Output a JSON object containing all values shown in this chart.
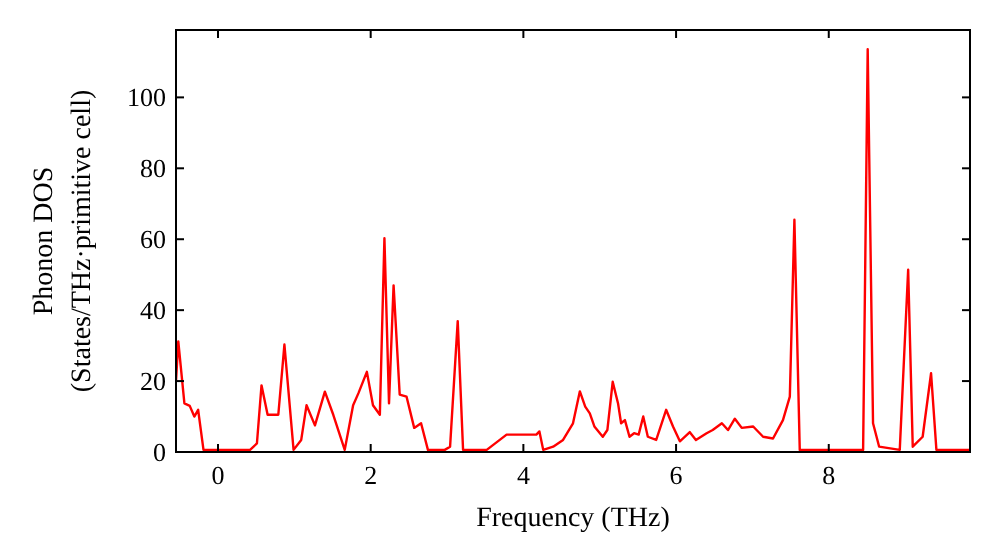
{
  "chart_data": {
    "type": "line",
    "xlabel": "Frequency (THz)",
    "ylabel": "Phonon DOS\n(States/THz·primitive cell)",
    "xlim": [
      -0.55,
      9.85
    ],
    "ylim": [
      0,
      119
    ],
    "xticks": [
      0,
      2,
      4,
      6,
      8
    ],
    "yticks": [
      0,
      20,
      40,
      60,
      80,
      100
    ],
    "grid": false,
    "marker": "none",
    "line_style": "solid",
    "series": [
      {
        "color": "#ff0000",
        "x": [
          -0.55,
          -0.52,
          -0.44,
          -0.37,
          -0.31,
          -0.26,
          -0.19,
          0.42,
          0.51,
          0.57,
          0.65,
          0.79,
          0.87,
          0.99,
          1.09,
          1.16,
          1.27,
          1.4,
          1.51,
          1.66,
          1.77,
          1.84,
          1.95,
          2.03,
          2.12,
          2.18,
          2.24,
          2.3,
          2.38,
          2.47,
          2.57,
          2.66,
          2.75,
          2.97,
          3.04,
          3.14,
          3.21,
          3.52,
          3.78,
          4.17,
          4.21,
          4.26,
          4.39,
          4.52,
          4.65,
          4.74,
          4.81,
          4.87,
          4.93,
          5.04,
          5.1,
          5.17,
          5.24,
          5.28,
          5.33,
          5.39,
          5.45,
          5.51,
          5.57,
          5.63,
          5.74,
          5.87,
          5.96,
          6.05,
          6.18,
          6.26,
          6.4,
          6.48,
          6.6,
          6.68,
          6.77,
          6.86,
          7.01,
          7.14,
          7.27,
          7.4,
          7.49,
          7.55,
          7.62,
          8.45,
          8.51,
          8.58,
          8.66,
          8.93,
          9.04,
          9.1,
          9.23,
          9.34,
          9.41,
          9.84
        ],
        "values": [
          20,
          31.2,
          13.7,
          13,
          10,
          11.9,
          0.6,
          0.6,
          2.4,
          18.8,
          10.5,
          10.5,
          30.3,
          0.6,
          3.4,
          13.2,
          7.5,
          17,
          10.5,
          0.6,
          13.2,
          16.6,
          22.6,
          13.2,
          10.5,
          60.3,
          13.7,
          47,
          16.2,
          15.6,
          6.8,
          8.1,
          0.6,
          0.6,
          1.5,
          36.9,
          0.6,
          0.6,
          4.9,
          4.9,
          5.8,
          0.6,
          1.5,
          3.4,
          8.1,
          17.1,
          12.8,
          10.9,
          7.2,
          4.3,
          6.2,
          19.8,
          13.7,
          8.1,
          9,
          4.3,
          5.3,
          4.9,
          10,
          4.3,
          3.4,
          11.9,
          7.2,
          3,
          5.6,
          3.4,
          5.3,
          6.2,
          8.1,
          6.2,
          9.4,
          6.8,
          7.2,
          4.3,
          3.8,
          9,
          15.6,
          65.5,
          0.6,
          0.6,
          113.6,
          8.1,
          1.5,
          0.6,
          51.4,
          1.5,
          4.3,
          22.2,
          0.6,
          0.6
        ]
      }
    ]
  }
}
